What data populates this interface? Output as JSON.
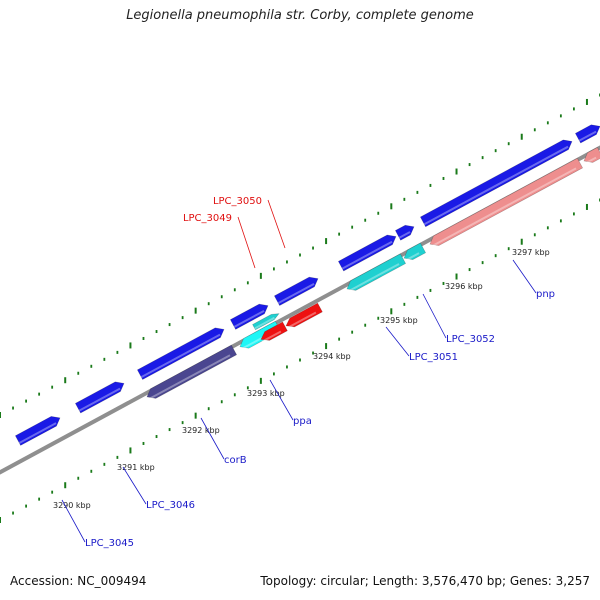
{
  "title": "Legionella pneumophila str. Corby, complete genome",
  "footer": {
    "accession": "Accession: NC_009494",
    "topology": "Topology: circular; Length: 3,576,470 bp; Genes: 3,257"
  },
  "colors": {
    "backbone": "#8f8f8f",
    "dots": "#1a7a1a",
    "gene_blue": "#1a1ae6",
    "gene_cyan": "#1fd0d0",
    "gene_bright_cyan": "#1ef6f6",
    "gene_red": "#ee1111",
    "gene_pink": "#ee8e8e",
    "gene_slate": "#4a4690",
    "label_blue": "#1a1ac8",
    "label_red": "#e01010"
  },
  "ticks": [
    {
      "label": "3290 kbp"
    },
    {
      "label": "3291 kbp"
    },
    {
      "label": "3292 kbp"
    },
    {
      "label": "3293 kbp"
    },
    {
      "label": "3294 kbp"
    },
    {
      "label": "3295 kbp"
    },
    {
      "label": "3296 kbp"
    },
    {
      "label": "3297 kbp"
    }
  ],
  "genes": [
    {
      "name": "LPC_3045",
      "color": "blue"
    },
    {
      "name": "LPC_3046",
      "color": "blue"
    },
    {
      "name": "corB",
      "color": "blue"
    },
    {
      "name": "ppa",
      "color": "blue"
    },
    {
      "name": "LPC_3049",
      "color": "red"
    },
    {
      "name": "LPC_3050",
      "color": "red"
    },
    {
      "name": "LPC_3051",
      "color": "blue"
    },
    {
      "name": "LPC_3052",
      "color": "blue"
    },
    {
      "name": "pnp",
      "color": "blue"
    }
  ]
}
